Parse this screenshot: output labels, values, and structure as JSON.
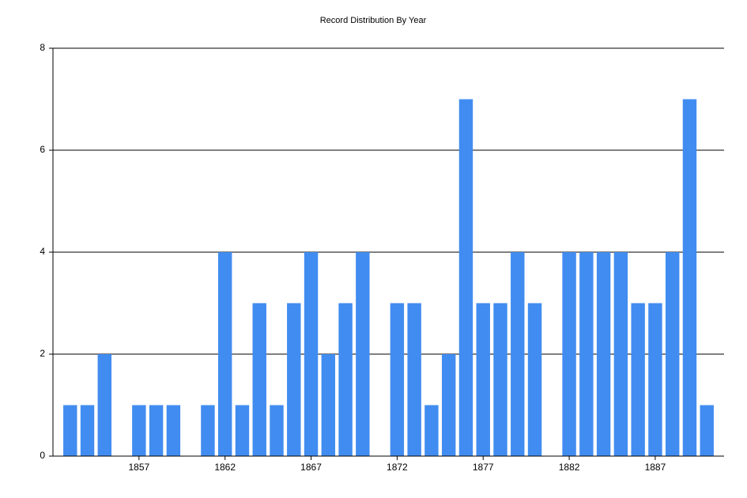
{
  "chart_data": {
    "type": "bar",
    "title": "Record Distribution By Year",
    "x": [
      1853,
      1854,
      1855,
      1857,
      1858,
      1859,
      1861,
      1862,
      1863,
      1864,
      1865,
      1866,
      1867,
      1868,
      1869,
      1870,
      1872,
      1873,
      1874,
      1875,
      1876,
      1877,
      1878,
      1879,
      1880,
      1882,
      1883,
      1884,
      1885,
      1886,
      1887,
      1888,
      1889,
      1890
    ],
    "values": [
      1,
      1,
      2,
      1,
      1,
      1,
      1,
      4,
      1,
      3,
      1,
      3,
      4,
      2,
      3,
      4,
      3,
      3,
      1,
      2,
      7,
      3,
      3,
      4,
      3,
      4,
      4,
      4,
      4,
      3,
      3,
      4,
      7,
      1
    ],
    "color": "#418cf0",
    "xlim": [
      1852,
      1891
    ],
    "xticks": [
      1857,
      1862,
      1867,
      1872,
      1877,
      1882,
      1887
    ],
    "ylim": [
      0,
      8
    ],
    "yticks": [
      0,
      2,
      4,
      6,
      8
    ],
    "grid": true
  }
}
